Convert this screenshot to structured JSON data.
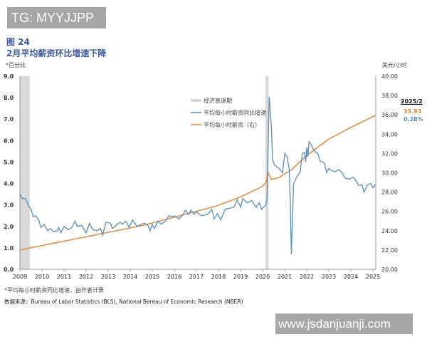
{
  "watermarks": {
    "top_left": "TG: MYYJJPP",
    "bottom_right": "www.jsdanjuanji.com"
  },
  "figure_number": "图 24",
  "note": "*平均每小时薪资同比增速，由作者计算",
  "source": "数据来源：Bureau of Labor Statistics (BLS), National Bereau of Economic Research (NBER)",
  "annotation": {
    "date": "2025/2",
    "wage": "35.93",
    "growth": "0.28%"
  },
  "colors": {
    "growth": "#5b8db8",
    "wage": "#e08a3c",
    "recession": "#d9d9d9"
  },
  "chart_data": {
    "type": "line",
    "title": "2月平均薪资环比增速下降",
    "ylabel_left": "*百分比",
    "ylabel_right": "美元/小时",
    "ylim_left": [
      0,
      9
    ],
    "ylim_right": [
      20,
      40
    ],
    "xlim": [
      2009,
      2025.2
    ],
    "left_ticks": [
      "0.0",
      "1.0",
      "2.0",
      "3.0",
      "4.0",
      "5.0",
      "6.0",
      "7.0",
      "8.0",
      "9.0"
    ],
    "right_ticks": [
      "20.00",
      "22.00",
      "24.00",
      "26.00",
      "28.00",
      "30.00",
      "32.00",
      "34.00",
      "36.00",
      "38.00",
      "40.00"
    ],
    "x_ticks": [
      "2009",
      "2010",
      "2011",
      "2012",
      "2013",
      "2014",
      "2015",
      "2016",
      "2017",
      "2018",
      "2019",
      "2020",
      "2021",
      "2022",
      "2023",
      "2024",
      "2025"
    ],
    "grid": false,
    "legend_placement": "top-center",
    "recessions": [
      {
        "name": "经济衰退期",
        "periods": [
          [
            2009.0,
            2009.45
          ],
          [
            2020.12,
            2020.27
          ]
        ]
      }
    ],
    "series": [
      {
        "name": "平均每小时薪资同比增速",
        "axis": "left",
        "x": [
          2009.0,
          2009.1,
          2009.25,
          2009.4,
          2009.5,
          2009.6,
          2009.7,
          2009.85,
          2009.95,
          2010.1,
          2010.25,
          2010.4,
          2010.5,
          2010.7,
          2010.75,
          2010.85,
          2011.0,
          2011.2,
          2011.35,
          2011.5,
          2011.6,
          2011.8,
          2012.0,
          2012.15,
          2012.3,
          2012.5,
          2012.65,
          2012.75,
          2012.9,
          2013.1,
          2013.2,
          2013.4,
          2013.55,
          2013.65,
          2013.8,
          2013.95,
          2014.1,
          2014.3,
          2014.5,
          2014.65,
          2014.8,
          2014.9,
          2015.0,
          2015.1,
          2015.25,
          2015.4,
          2015.6,
          2015.75,
          2015.9,
          2016.0,
          2016.2,
          2016.4,
          2016.5,
          2016.65,
          2016.75,
          2016.9,
          2017.0,
          2017.2,
          2017.5,
          2017.7,
          2017.8,
          2017.95,
          2018.1,
          2018.3,
          2018.5,
          2018.7,
          2018.85,
          2019.0,
          2019.1,
          2019.3,
          2019.5,
          2019.7,
          2019.85,
          2019.95,
          2020.05,
          2020.15,
          2020.2,
          2020.3,
          2020.4,
          2020.45,
          2020.55,
          2020.75,
          2020.9,
          2021.0,
          2021.1,
          2021.2,
          2021.25,
          2021.3,
          2021.4,
          2021.55,
          2021.7,
          2021.8,
          2021.9,
          2021.95,
          2022.0,
          2022.05,
          2022.1,
          2022.2,
          2022.35,
          2022.5,
          2022.6,
          2022.7,
          2022.8,
          2022.9,
          2023.0,
          2023.15,
          2023.3,
          2023.45,
          2023.6,
          2023.75,
          2023.95,
          2024.1,
          2024.25,
          2024.35,
          2024.5,
          2024.6,
          2024.75,
          2024.9,
          2025.0,
          2025.1
        ],
        "y": [
          3.5,
          3.3,
          3.3,
          2.95,
          2.8,
          2.45,
          2.5,
          2.3,
          1.95,
          2.1,
          1.8,
          1.9,
          1.75,
          1.8,
          1.95,
          1.7,
          2.0,
          1.85,
          1.95,
          2.25,
          2.0,
          2.05,
          1.7,
          2.15,
          1.85,
          1.8,
          1.9,
          1.6,
          2.2,
          2.15,
          1.9,
          2.1,
          2.2,
          2.1,
          2.25,
          1.95,
          2.3,
          2.0,
          2.1,
          2.15,
          2.05,
          1.8,
          2.1,
          1.9,
          2.25,
          2.1,
          2.25,
          2.5,
          2.45,
          2.5,
          2.35,
          2.55,
          2.75,
          2.55,
          2.75,
          2.55,
          2.7,
          2.5,
          2.55,
          2.8,
          2.35,
          2.6,
          2.3,
          2.8,
          2.85,
          2.9,
          3.25,
          2.9,
          3.3,
          3.1,
          3.2,
          2.9,
          3.1,
          2.8,
          2.9,
          3.0,
          3.3,
          8.05,
          6.6,
          5.1,
          4.85,
          4.7,
          4.5,
          5.4,
          5.25,
          4.7,
          3.3,
          0.7,
          4.0,
          4.3,
          4.55,
          5.4,
          5.45,
          5.0,
          5.7,
          5.25,
          5.95,
          5.8,
          5.5,
          5.4,
          5.05,
          5.0,
          4.95,
          4.5,
          4.7,
          4.6,
          4.55,
          4.65,
          4.5,
          4.25,
          4.2,
          4.3,
          4.1,
          3.9,
          3.95,
          3.6,
          3.95,
          4.0,
          3.8,
          3.95
        ]
      },
      {
        "name": "平均每小时薪资（右）",
        "axis": "right",
        "x": [
          2009.0,
          2014.6,
          2017.9,
          2019.0,
          2020.0,
          2020.15,
          2020.25,
          2020.4,
          2020.75,
          2021.0,
          2021.25,
          2022.0,
          2023.0,
          2024.0,
          2025.1
        ],
        "y": [
          22.0,
          24.56,
          26.55,
          27.5,
          28.6,
          29.0,
          30.0,
          29.3,
          29.5,
          29.9,
          30.2,
          31.8,
          33.5,
          34.7,
          35.93
        ]
      }
    ]
  }
}
